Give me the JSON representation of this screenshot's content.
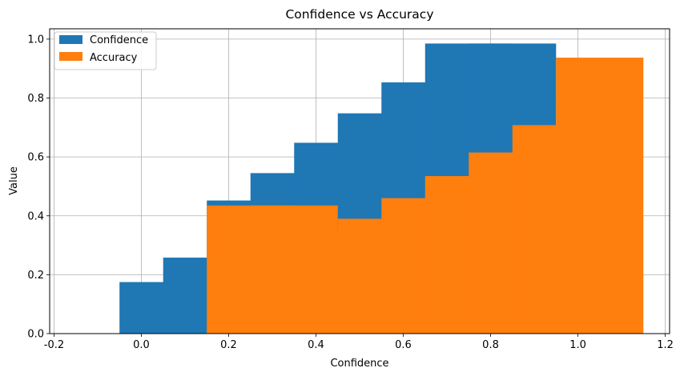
{
  "chart_data": {
    "type": "bar",
    "title": "Confidence vs Accuracy",
    "xlabel": "Confidence",
    "ylabel": "Value",
    "xlim": [
      -0.21,
      1.21
    ],
    "ylim": [
      0,
      1.035
    ],
    "xticks": [
      "-0.2",
      "0.0",
      "0.2",
      "0.4",
      "0.6",
      "0.8",
      "1.0",
      "1.2"
    ],
    "yticks": [
      "0.0",
      "0.2",
      "0.4",
      "0.6",
      "0.8",
      "1.0"
    ],
    "grid": true,
    "legend_position": "top-left",
    "bar_width": 0.2,
    "series": [
      {
        "name": "Confidence",
        "color": "#1f77b4",
        "x": [
          0.05,
          0.15,
          0.25,
          0.35,
          0.45,
          0.55,
          0.65,
          0.75,
          0.85
        ],
        "values": [
          0.175,
          0.258,
          0.452,
          0.545,
          0.648,
          0.748,
          0.853,
          0.985,
          0.985
        ]
      },
      {
        "name": "Accuracy",
        "color": "#ff7f0e",
        "x": [
          0.25,
          0.35,
          0.45,
          0.55,
          0.65,
          0.75,
          0.85,
          0.95,
          1.05
        ],
        "values": [
          0.435,
          0.435,
          0.335,
          0.39,
          0.46,
          0.535,
          0.615,
          0.708,
          0.937
        ]
      }
    ]
  }
}
